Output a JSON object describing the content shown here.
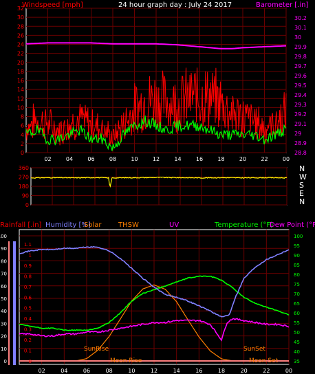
{
  "header": {
    "windspeed_label": "Windspeed [mph]",
    "title": "24 hour graph day : July 24 2017",
    "barometer_label": "Barometer [.in]"
  },
  "lower_legend": {
    "rainfall": "Rainfall [.in]",
    "humidity": "Humidity [%]",
    "solar": "Solar",
    "thsw": "THSW",
    "uv": "UV",
    "temperature": "Temperature (°F)",
    "dewpoint": "Dew Point (°F)"
  },
  "annotations": {
    "sunrise": "SunRise",
    "sunset": "SunSet",
    "moonrise": "Moon Rise",
    "moonset": "Moon Set"
  },
  "colors": {
    "background": "#000000",
    "grid": "#6a0000",
    "axis": "#ffffff",
    "wind_speed": "#ff0000",
    "wind_gust": "#00ff00",
    "barometer": "#ff00ff",
    "wind_direction": "#ffff00",
    "humidity": "#8080ff",
    "temperature": "#00ff00",
    "dew_point": "#ff00ff",
    "solar": "#ff8000",
    "rainfall": "#ff8080",
    "thsw_label": "#ff8000",
    "uv_label": "#ff00ff",
    "axis_text_left": "#ff0000",
    "axis_text_blue": "#8080ff",
    "axis_text_green": "#00ff00",
    "compass_text": "#ffffff"
  },
  "chart_data": [
    {
      "type": "line",
      "title": "24 hour graph day : July 24 2017",
      "x_ticks": [
        "02",
        "04",
        "06",
        "08",
        "10",
        "12",
        "14",
        "16",
        "18",
        "20",
        "22",
        "00"
      ],
      "ylabel": "Windspeed [mph]",
      "ylim": [
        0,
        32
      ],
      "y_ticks": [
        "0",
        "2",
        "4",
        "6",
        "8",
        "10",
        "12",
        "14",
        "16",
        "18",
        "20",
        "22",
        "24",
        "26",
        "28",
        "30",
        "32"
      ],
      "y2label": "Barometer [.in]",
      "y2lim": [
        28.8,
        30.3
      ],
      "y2_ticks": [
        "28.8",
        "28.9",
        "29",
        "29.1",
        "29.2",
        "29.3",
        "29.4",
        "29.5",
        "29.6",
        "29.7",
        "29.8",
        "29.9",
        "30",
        "30.1",
        "30.2"
      ],
      "grid": true,
      "series": [
        {
          "axis": "left",
          "hours": [
            0,
            1,
            2,
            3,
            4,
            5,
            6,
            7,
            8,
            9,
            10,
            11,
            12,
            13,
            14,
            15,
            16,
            17,
            18,
            19,
            20,
            21,
            22,
            23,
            24
          ],
          "values": [
            7,
            9,
            8,
            6,
            8,
            9,
            8,
            7,
            4,
            8,
            12,
            14,
            15,
            14,
            14,
            15,
            16,
            15,
            14,
            11,
            10,
            9,
            7,
            8,
            11
          ]
        },
        {
          "axis": "left",
          "hours": [
            0,
            1,
            2,
            3,
            4,
            5,
            6,
            7,
            8,
            9,
            10,
            11,
            12,
            13,
            14,
            15,
            16,
            17,
            18,
            19,
            20,
            21,
            22,
            23,
            24
          ],
          "values": [
            4,
            5,
            3,
            3,
            4,
            5,
            3,
            3,
            1,
            4,
            6,
            7,
            6,
            5,
            6,
            6,
            6,
            5,
            4,
            4,
            4,
            4,
            3,
            4,
            5
          ]
        },
        {
          "axis": "right",
          "hours": [
            0,
            2,
            4,
            6,
            8,
            10,
            12,
            14,
            16,
            17,
            18,
            19,
            20,
            22,
            24
          ],
          "values": [
            29.93,
            29.94,
            29.94,
            29.94,
            29.93,
            29.93,
            29.93,
            29.92,
            29.9,
            29.89,
            29.88,
            29.88,
            29.89,
            29.9,
            29.91
          ]
        }
      ]
    },
    {
      "type": "line",
      "ylim": [
        0,
        360
      ],
      "y_ticks": [
        "0",
        "90",
        "180",
        "270",
        "360"
      ],
      "direction_labels": [
        "N",
        "W",
        "S",
        "E",
        "N"
      ],
      "grid": true,
      "series": [
        {
          "hours": [
            0,
            2,
            4,
            6,
            7.3,
            7.4,
            7.6,
            8,
            10,
            12,
            14,
            16,
            18,
            20,
            22,
            24
          ],
          "values": [
            262,
            264,
            262,
            265,
            262,
            160,
            262,
            262,
            264,
            266,
            264,
            262,
            264,
            262,
            264,
            262
          ]
        }
      ]
    },
    {
      "type": "line",
      "x_ticks": [
        "02",
        "04",
        "06",
        "08",
        "10",
        "12",
        "14",
        "16",
        "18",
        "20",
        "22",
        "00"
      ],
      "y_left_ticks": [
        "0",
        "10",
        "20",
        "30",
        "40",
        "50",
        "60",
        "70",
        "80",
        "90",
        "100"
      ],
      "ylim_humidity": [
        0,
        100
      ],
      "y_left2_ticks": [
        "0",
        "0.1",
        "0.2",
        "0.3",
        "0.4",
        "0.5",
        "0.6",
        "0.7",
        "0.8",
        "0.9",
        "1",
        "1.1"
      ],
      "ylim_rainfall": [
        0,
        1.1
      ],
      "y_right_ticks": [
        "35",
        "40",
        "45",
        "50",
        "55",
        "60",
        "65",
        "70",
        "75",
        "80",
        "85",
        "90",
        "95",
        "100"
      ],
      "ylim_temperature": [
        35,
        100
      ],
      "grid": true,
      "series": [
        {
          "axis": "humidity",
          "hours": [
            0,
            1,
            2,
            3,
            4,
            5,
            6,
            7,
            8,
            9,
            10,
            11,
            12,
            13,
            14,
            15,
            16,
            17,
            18,
            18.7,
            19.2,
            20,
            21,
            22,
            23,
            24
          ],
          "values": [
            86,
            88,
            89,
            89,
            90,
            90,
            91,
            91,
            88,
            82,
            74,
            66,
            59,
            53,
            51,
            48,
            44,
            40,
            35,
            37,
            50,
            66,
            75,
            81,
            85,
            89
          ]
        },
        {
          "axis": "temperature",
          "hours": [
            0,
            1,
            2,
            3,
            4,
            5,
            6,
            7,
            8,
            9,
            10,
            11,
            12,
            13,
            14,
            15,
            16,
            17,
            18,
            19,
            20,
            21,
            22,
            23,
            24
          ],
          "values": [
            54,
            53,
            52,
            52,
            51,
            51,
            51,
            52,
            55,
            60,
            66,
            70,
            72,
            74,
            76,
            78,
            79,
            79,
            77,
            73,
            68,
            65,
            63,
            61,
            59
          ]
        },
        {
          "axis": "temperature",
          "hours": [
            0,
            1,
            2,
            3,
            4,
            5,
            6,
            7,
            8,
            9,
            10,
            11,
            12,
            13,
            14,
            15,
            16,
            17,
            17.5,
            18,
            18.5,
            19,
            20,
            21,
            22,
            23,
            24
          ],
          "values": [
            49,
            49,
            48,
            48,
            49,
            49,
            50,
            50,
            51,
            52,
            53,
            54,
            55,
            55,
            56,
            56,
            56,
            54,
            50,
            46,
            55,
            57,
            56,
            55,
            54,
            54,
            53
          ]
        },
        {
          "axis": "rainfall",
          "hours": [
            0,
            24
          ],
          "values": [
            0,
            0
          ]
        },
        {
          "axis": "temperature",
          "hours": [
            5,
            6,
            7,
            8,
            9,
            10,
            11,
            12,
            13,
            14,
            15,
            16,
            17,
            18,
            19,
            20
          ],
          "values": [
            35,
            36.2,
            40.6,
            47.7,
            56.8,
            66.1,
            72.4,
            74.5,
            72.2,
            65.8,
            56.5,
            47.5,
            40.2,
            36.1,
            35,
            35
          ]
        }
      ]
    }
  ]
}
